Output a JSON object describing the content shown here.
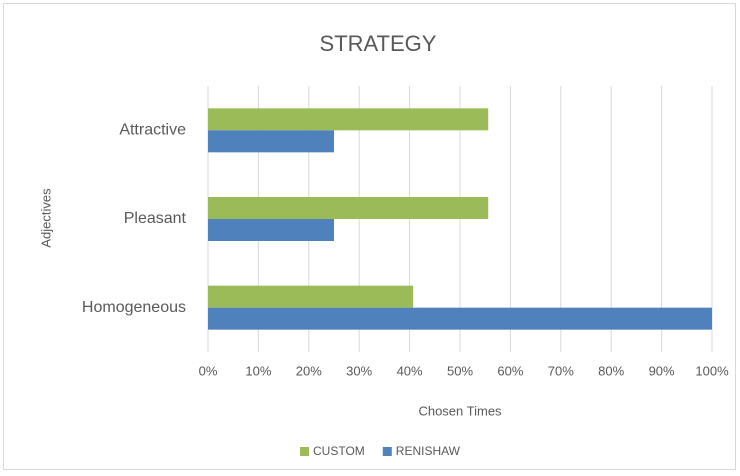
{
  "chart_data": {
    "type": "hbar",
    "title": "STRATEGY",
    "x_label": "Chosen Times",
    "y_label": "Adjectives",
    "categories": [
      "Attractive",
      "Pleasant",
      "Homogeneous"
    ],
    "series": [
      {
        "name": "CUSTOM",
        "color": "#9bbb59",
        "values": [
          55.6,
          55.6,
          40.7
        ]
      },
      {
        "name": "RENISHAW",
        "color": "#4f81bd",
        "values": [
          25,
          25,
          100
        ]
      }
    ],
    "xlim": [
      0,
      100
    ],
    "xticks": [
      {
        "value": 0,
        "label": "0%"
      },
      {
        "value": 10,
        "label": "10%"
      },
      {
        "value": 20,
        "label": "20%"
      },
      {
        "value": 30,
        "label": "30%"
      },
      {
        "value": 40,
        "label": "40%"
      },
      {
        "value": 50,
        "label": "50%"
      },
      {
        "value": 60,
        "label": "60%"
      },
      {
        "value": 70,
        "label": "70%"
      },
      {
        "value": 80,
        "label": "80%"
      },
      {
        "value": 90,
        "label": "90%"
      },
      {
        "value": 100,
        "label": "100%"
      }
    ],
    "grid": true,
    "legend": "bottom"
  }
}
